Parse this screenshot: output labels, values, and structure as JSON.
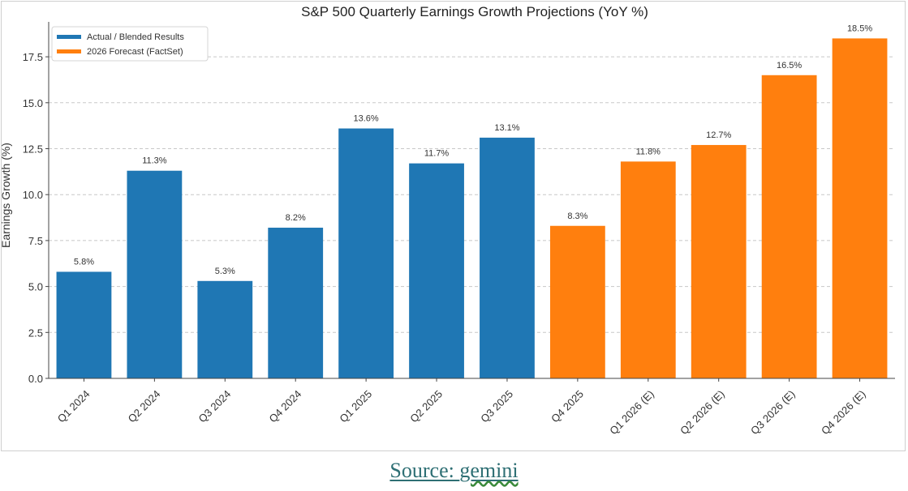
{
  "chart_data": {
    "type": "bar",
    "title": "S&P 500 Quarterly Earnings Growth Projections (YoY %)",
    "xlabel": "",
    "ylabel": "Earnings Growth (%)",
    "ylim": [
      0,
      19.4
    ],
    "yticks": [
      0.0,
      2.5,
      5.0,
      7.5,
      10.0,
      12.5,
      15.0,
      17.5
    ],
    "ytick_labels": [
      "0.0",
      "2.5",
      "5.0",
      "7.5",
      "10.0",
      "12.5",
      "15.0",
      "17.5"
    ],
    "grid": "y-dashed",
    "legend_position": "top-left",
    "series": [
      {
        "name": "Actual / Blended Results",
        "color": "#1f77b4",
        "categories": [
          "Q1 2024",
          "Q2 2024",
          "Q3 2024",
          "Q4 2024",
          "Q1 2025",
          "Q2 2025",
          "Q3 2025"
        ],
        "values": [
          5.8,
          11.3,
          5.3,
          8.2,
          13.6,
          11.7,
          13.1
        ],
        "labels": [
          "5.8%",
          "11.3%",
          "5.3%",
          "8.2%",
          "13.6%",
          "11.7%",
          "13.1%"
        ]
      },
      {
        "name": "2026 Forecast (FactSet)",
        "color": "#ff7f0e",
        "categories": [
          "Q4 2025",
          "Q1 2026 (E)",
          "Q2 2026 (E)",
          "Q3 2026 (E)",
          "Q4 2026 (E)"
        ],
        "values": [
          8.3,
          11.8,
          12.7,
          16.5,
          18.5
        ],
        "labels": [
          "8.3%",
          "11.8%",
          "12.7%",
          "16.5%",
          "18.5%"
        ]
      }
    ]
  },
  "source": {
    "prefix": "Source: ",
    "name": "gemini"
  }
}
